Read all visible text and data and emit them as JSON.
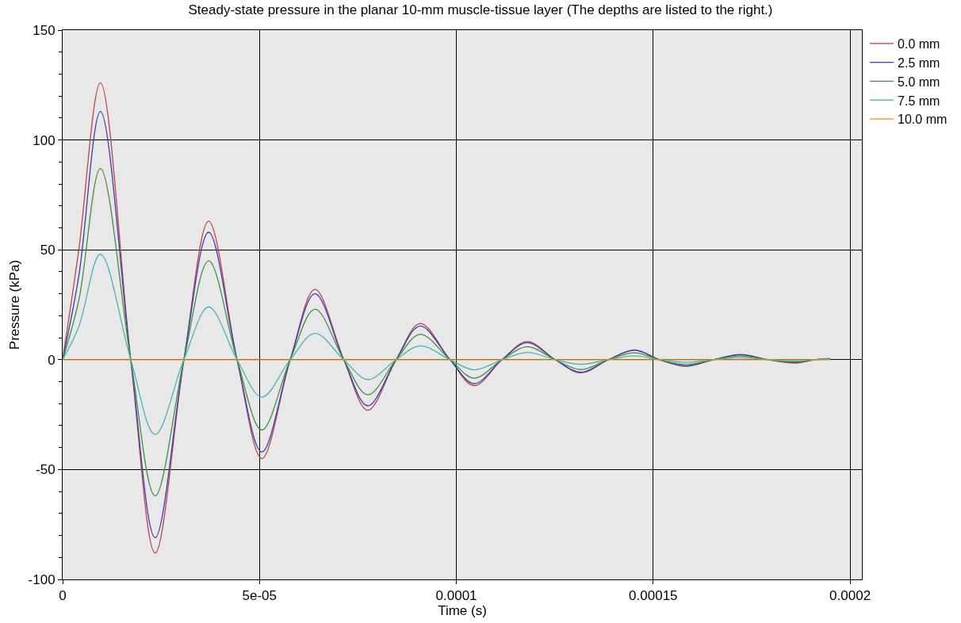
{
  "chart_data": {
    "type": "line",
    "title": "Steady-state pressure in the planar 10-mm muscle-tissue layer (The depths are listed to the right.)",
    "xlabel": "Time (s)",
    "ylabel": "Pressure (kPa)",
    "x": [
      0,
      4.1e-06,
      9.6e-06,
      1.73e-05,
      2.35e-05,
      3.08e-05,
      3.71e-05,
      4.43e-05,
      5.06e-05,
      5.78e-05,
      6.41e-05,
      7.14e-05,
      7.75e-05,
      8.47e-05,
      9.08e-05,
      9.84e-05,
      0.0001045,
      0.0001116,
      0.000118,
      0.0001251,
      0.0001316,
      0.0001386,
      0.0001453,
      0.0001516,
      0.0001584,
      0.0001653,
      0.0001722,
      0.0001792,
      0.0001861,
      0.000191,
      0.0001949
    ],
    "series": [
      {
        "name": "0.0 mm",
        "color": "#b84545",
        "values": [
          0,
          50,
          126,
          0,
          -88,
          0,
          63,
          0,
          -45,
          0,
          32,
          0,
          -23,
          0,
          16.5,
          0,
          -11.8,
          0,
          8.3,
          0,
          -6,
          0,
          4.5,
          0,
          -3,
          0,
          2.4,
          0,
          -1.5,
          0,
          0.5
        ]
      },
      {
        "name": "2.5 mm",
        "color": "#3c3cb0",
        "values": [
          0,
          38,
          113,
          0,
          -81,
          0,
          58,
          0,
          -42,
          0,
          30,
          0,
          -21,
          0,
          15.3,
          0,
          -10.9,
          0,
          7.7,
          0,
          -5.7,
          0,
          4.3,
          0,
          -2.8,
          0,
          2.2,
          0,
          -1.4,
          0,
          0.5
        ]
      },
      {
        "name": "5.0 mm",
        "color": "#3f8f3f",
        "values": [
          0,
          27,
          87,
          0,
          -62,
          0,
          45,
          0,
          -32,
          0,
          23,
          0,
          -16,
          0,
          11.5,
          0,
          -8.4,
          0,
          5.9,
          0,
          -4.5,
          0,
          3.1,
          0,
          -2.2,
          0,
          1.7,
          0,
          -1,
          0,
          0.4
        ]
      },
      {
        "name": "7.5 mm",
        "color": "#4ab3b3",
        "values": [
          0,
          15,
          48,
          0,
          -34,
          0,
          24,
          0,
          -17,
          0,
          12,
          0,
          -9,
          0,
          6.3,
          0,
          -4.6,
          0,
          3.3,
          0,
          -2.1,
          0,
          1.8,
          0,
          -1.2,
          0,
          1,
          0,
          -0.6,
          0,
          0.2
        ]
      },
      {
        "name": "10.0 mm",
        "color": "#e8901a",
        "x": [
          0,
          0.0001949
        ],
        "values": [
          0,
          0
        ]
      }
    ],
    "xlim": [
      0,
      0.000203
    ],
    "ylim": [
      -100,
      150
    ],
    "xticks": [
      {
        "value": 0,
        "label": "0"
      },
      {
        "value": 5e-05,
        "label": "5e-05"
      },
      {
        "value": 0.0001,
        "label": "0.0001"
      },
      {
        "value": 0.00015,
        "label": "0.00015"
      },
      {
        "value": 0.0002,
        "label": "0.0002"
      }
    ],
    "yticks": [
      -100,
      -50,
      0,
      50,
      100,
      150
    ],
    "grid": true,
    "legend": "top right",
    "marker": "none",
    "line_style": "solid"
  }
}
